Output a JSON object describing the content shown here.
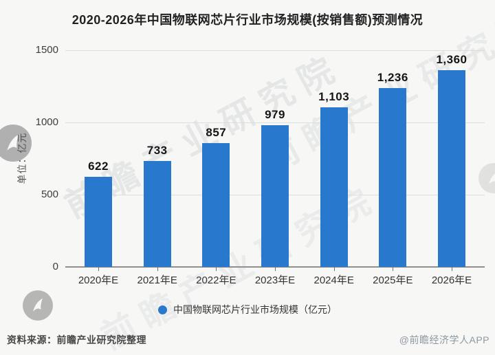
{
  "title": "2020-2026年中国物联网芯片行业市场规模(按销售额)预测情况",
  "chart_data": {
    "type": "bar",
    "categories": [
      "2020年E",
      "2021年E",
      "2022年E",
      "2023年E",
      "2024年E",
      "2025年E",
      "2026年E"
    ],
    "values": [
      622,
      733,
      857,
      979,
      1103,
      1236,
      1360
    ],
    "value_labels": [
      "622",
      "733",
      "857",
      "979",
      "1,103",
      "1,236",
      "1,360"
    ],
    "title": "2020-2026年中国物联网芯片行业市场规模(按销售额)预测情况",
    "xlabel": "",
    "ylabel": "单位：亿元",
    "ylim": [
      0,
      1500
    ],
    "ytick_labels": [
      "0",
      "500",
      "1000",
      "1500"
    ],
    "grid": true,
    "legend_position": "bottom",
    "legend": "中国物联网芯片行业市场规模（亿元）",
    "bar_color": "#2878cd"
  },
  "watermark": {
    "text": "前瞻产业研究院",
    "logo_name": "qianzhan-logo-badge"
  },
  "footer": {
    "source": "资料来源：前瞻产业研究院整理",
    "credit": "@前瞻经济学人APP"
  },
  "colors": {
    "bar": "#2878cd",
    "background": "#f7f7f6",
    "grid": "#dcdcda",
    "axis": "#8f8f8f"
  }
}
